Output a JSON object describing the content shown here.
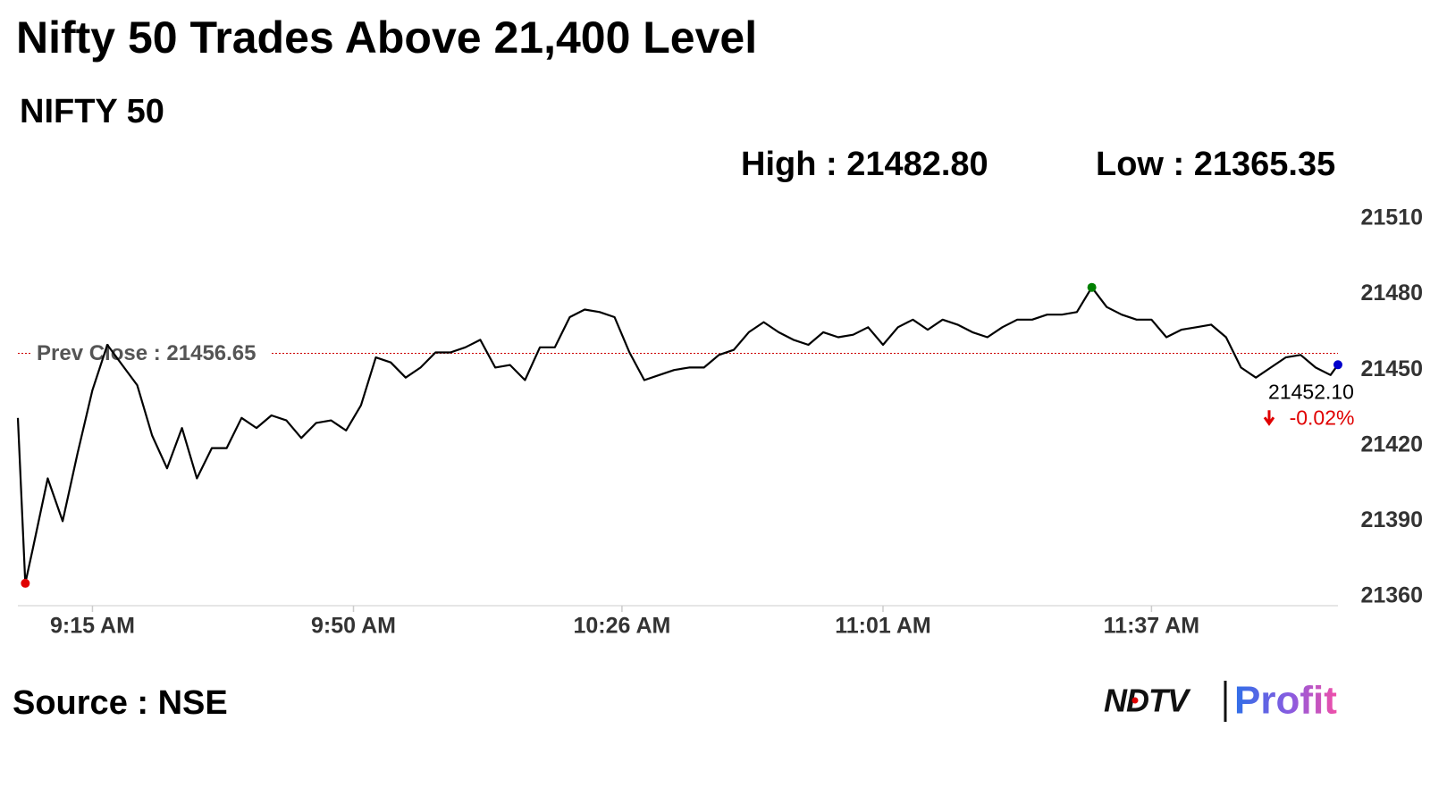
{
  "chart_data": {
    "type": "line",
    "title": "Nifty 50 Trades Above 21,400 Level",
    "subtitle": "NIFTY 50",
    "high_label": "High : 21482.80",
    "low_label": "Low : 21365.35",
    "x": [
      545,
      546,
      547,
      549,
      551,
      553,
      555,
      557,
      559,
      561,
      563,
      565,
      567,
      569,
      571,
      573,
      575,
      577,
      579,
      581,
      583,
      585,
      587,
      589,
      591,
      593,
      595,
      597,
      599,
      601,
      603,
      605,
      607,
      609,
      611,
      613,
      615,
      617,
      619,
      621,
      623,
      625,
      627,
      629,
      631,
      633,
      635,
      637,
      639,
      641,
      643,
      645,
      647,
      649,
      651,
      653,
      655,
      657,
      659,
      661,
      663,
      665,
      667,
      669,
      671,
      673,
      675,
      677,
      679,
      681,
      683,
      685,
      687,
      689,
      691,
      693,
      695,
      697,
      699,
      701,
      703,
      705,
      707,
      709,
      711,
      713,
      715,
      717,
      719,
      721,
      722
    ],
    "values": [
      21431,
      21365.35,
      21379,
      21407,
      21390,
      21417,
      21442,
      21460,
      21452,
      21444,
      21424,
      21411,
      21427,
      21407,
      21419,
      21419,
      21431,
      21427,
      21432,
      21430,
      21423,
      21429,
      21430,
      21426,
      21436,
      21455,
      21453,
      21447,
      21451,
      21457,
      21457,
      21459,
      21462,
      21451,
      21452,
      21446,
      21459,
      21459,
      21471,
      21474,
      21473,
      21471,
      21457,
      21446,
      21448,
      21450,
      21451,
      21451,
      21456,
      21458,
      21465,
      21469,
      21465,
      21462,
      21460,
      21465,
      21463,
      21464,
      21467,
      21460,
      21467,
      21470,
      21466,
      21470,
      21468,
      21465,
      21463,
      21467,
      21470,
      21470,
      21472,
      21472,
      21473,
      21482.8,
      21475,
      21472,
      21470,
      21470,
      21463,
      21466,
      21467,
      21468,
      21463,
      21451,
      21447,
      21451,
      21455,
      21456,
      21451,
      21448,
      21452.1
    ],
    "color": "#000000",
    "low_color": "#e00000",
    "high_color": "#008000",
    "last_color": "#0000cc",
    "xlim": [
      545,
      722
    ],
    "xticks": [
      {
        "value": 555,
        "label": "9:15 AM"
      },
      {
        "value": 590,
        "label": "9:50 AM"
      },
      {
        "value": 626,
        "label": "10:26 AM"
      },
      {
        "value": 661,
        "label": "11:01 AM"
      },
      {
        "value": 697,
        "label": "11:37 AM"
      }
    ],
    "ylim": [
      21360,
      21510
    ],
    "yticks": [
      21360,
      21390,
      21420,
      21450,
      21480,
      21510
    ],
    "reference_line": {
      "value": 21456.65,
      "label": "Prev Close : 21456.65",
      "color": "#cc0000"
    },
    "last_label": "21452.10",
    "change_label": "-0.02%",
    "change_color": "#e00000",
    "source": "Source : NSE",
    "logo": {
      "brand": "NDTV",
      "product": "Profit"
    }
  }
}
